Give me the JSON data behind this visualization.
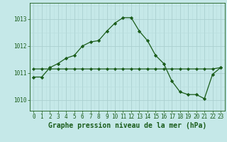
{
  "title": "Graphe pression niveau de la mer (hPa)",
  "background_color": "#c5e8e8",
  "grid_color_major": "#aad0d0",
  "grid_color_minor": "#b8dcdc",
  "line_color": "#1a5c1a",
  "marker_color": "#1a5c1a",
  "xlim": [
    -0.5,
    23.5
  ],
  "ylim": [
    1009.6,
    1013.6
  ],
  "yticks": [
    1010,
    1011,
    1012,
    1013
  ],
  "xticks": [
    0,
    1,
    2,
    3,
    4,
    5,
    6,
    7,
    8,
    9,
    10,
    11,
    12,
    13,
    14,
    15,
    16,
    17,
    18,
    19,
    20,
    21,
    22,
    23
  ],
  "curve1_x": [
    0,
    1,
    2,
    3,
    4,
    5,
    6,
    7,
    8,
    9,
    10,
    11,
    12,
    13,
    14,
    15,
    16,
    17,
    18,
    19,
    20,
    21,
    22,
    23
  ],
  "curve1_y": [
    1010.85,
    1010.85,
    1011.2,
    1011.35,
    1011.55,
    1011.65,
    1012.0,
    1012.15,
    1012.2,
    1012.55,
    1012.85,
    1013.05,
    1013.05,
    1012.55,
    1012.2,
    1011.65,
    1011.35,
    1010.7,
    1010.3,
    1010.2,
    1010.2,
    1010.05,
    1010.95,
    1011.2
  ],
  "curve2_x": [
    0,
    1,
    2,
    3,
    4,
    5,
    6,
    7,
    8,
    9,
    10,
    11,
    12,
    13,
    14,
    15,
    16,
    17,
    18,
    19,
    20,
    21,
    22,
    23
  ],
  "curve2_y": [
    1011.15,
    1011.15,
    1011.15,
    1011.15,
    1011.15,
    1011.15,
    1011.15,
    1011.15,
    1011.15,
    1011.15,
    1011.15,
    1011.15,
    1011.15,
    1011.15,
    1011.15,
    1011.15,
    1011.15,
    1011.15,
    1011.15,
    1011.15,
    1011.15,
    1011.15,
    1011.15,
    1011.2
  ],
  "tick_fontsize": 5.5,
  "xlabel_fontsize": 7.0
}
